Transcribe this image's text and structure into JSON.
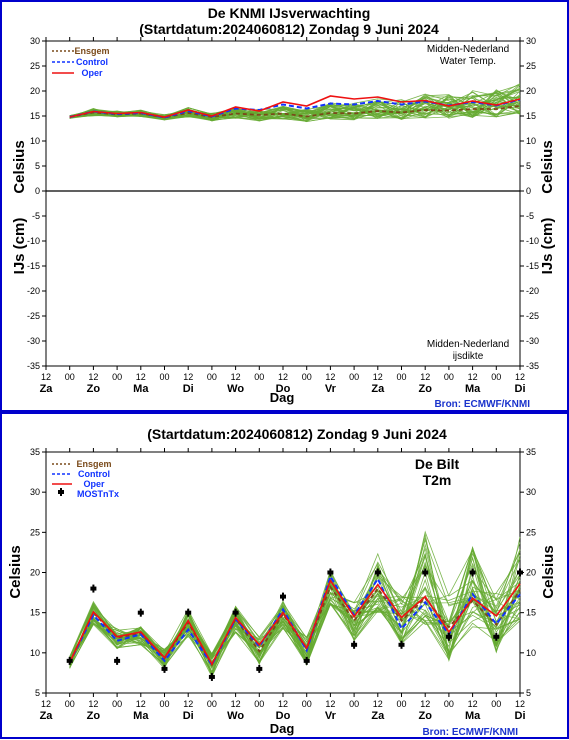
{
  "panel_top": {
    "title_line1": "De KNMI IJsverwachting",
    "title_line2": "(Startdatum:2024060812)  Zondag  9 Juni 2024",
    "ylabel_upper": "Celsius",
    "ylabel_lower": "IJs (cm)",
    "annotation_upper": [
      "Midden-Nederland",
      "Water Temp."
    ],
    "annotation_lower": [
      "Midden-Nederland",
      "ijsdikte"
    ],
    "xlabel": "Dag",
    "source": "Bron: ECMWF/KNMI",
    "legend": [
      "Ensgem",
      "Control",
      "Oper"
    ]
  },
  "panel_bottom": {
    "title": "(Startdatum:2024060812)  Zondag  9 Juni 2024",
    "location": [
      "De Bilt",
      "T2m"
    ],
    "ylabel": "Celsius",
    "xlabel": "Dag",
    "source": "Bron: ECMWF/KNMI",
    "legend": [
      "Ensgem",
      "Control",
      "Oper",
      "MOSTnTx"
    ]
  },
  "colors": {
    "frame": "#0000cc",
    "ensemble": "#66aa33",
    "ensgem": "#7a4a1a",
    "control": "#1133ff",
    "oper": "#ee1111",
    "mos": "#000000",
    "source": "#1a33cc"
  },
  "chart_data": [
    {
      "type": "line",
      "title": "De KNMI IJsverwachting (Startdatum:2024060812) Zondag 9 Juni 2024",
      "ylabel": "Celsius / IJs (cm)",
      "xlabel": "Dag",
      "ylim": [
        -35,
        30
      ],
      "ytick_labels": [
        "30",
        "25",
        "20",
        "15",
        "10",
        "5",
        "0",
        "-5",
        "-10",
        "-15",
        "-20",
        "-25",
        "-30",
        "-35"
      ],
      "xtick_hours": [
        "12",
        "00",
        "12",
        "00",
        "12",
        "00",
        "12",
        "00",
        "12",
        "00",
        "12",
        "00",
        "12",
        "00",
        "12",
        "00",
        "12",
        "00",
        "12",
        "00",
        "12"
      ],
      "xtick_days": [
        "Za",
        "Zo",
        "Ma",
        "Di",
        "Wo",
        "Do",
        "Vr",
        "Za",
        "Zo",
        "Ma",
        "Di"
      ],
      "x_steps": [
        1,
        2,
        3,
        4,
        5,
        6,
        7,
        8,
        9,
        10,
        11,
        12,
        13,
        14,
        15,
        16,
        17,
        18,
        19,
        20
      ],
      "series": [
        {
          "name": "Ensgem",
          "values": [
            14.8,
            15.7,
            15.3,
            15.5,
            14.7,
            15.6,
            14.8,
            15.5,
            15.2,
            15.5,
            14.9,
            15.6,
            15.5,
            16.0,
            15.7,
            16.2,
            16.1,
            16.4,
            16.4,
            17.0
          ]
        },
        {
          "name": "Control",
          "values": [
            14.8,
            15.9,
            15.4,
            15.6,
            14.7,
            16.0,
            14.9,
            16.5,
            16.2,
            17.3,
            16.5,
            17.5,
            17.3,
            18.0,
            17.3,
            17.9,
            17.1,
            17.8,
            17.1,
            18.3
          ]
        },
        {
          "name": "Oper",
          "values": [
            14.8,
            15.9,
            15.5,
            15.7,
            14.8,
            16.2,
            15.0,
            16.8,
            16.0,
            17.8,
            17.0,
            19.0,
            18.4,
            18.8,
            17.8,
            18.1,
            17.0,
            18.0,
            17.2,
            18.4
          ]
        }
      ],
      "ensemble_spread": {
        "low": [
          14.5,
          15.0,
          14.8,
          14.9,
          14.2,
          14.8,
          14.0,
          14.4,
          14.0,
          14.3,
          13.8,
          14.3,
          14.2,
          14.5,
          14.3,
          14.6,
          14.5,
          14.7,
          14.8,
          15.3
        ],
        "high": [
          15.1,
          16.6,
          16.1,
          16.2,
          15.3,
          16.7,
          15.6,
          16.7,
          16.5,
          17.2,
          16.6,
          17.7,
          17.6,
          18.6,
          18.3,
          19.4,
          19.4,
          20.2,
          20.3,
          21.5
        ]
      },
      "ice_thickness": 0
    },
    {
      "type": "line",
      "title": "(Startdatum:2024060812) Zondag 9 Juni 2024",
      "ylabel": "Celsius",
      "xlabel": "Dag",
      "ylim": [
        5,
        35
      ],
      "ytick_labels": [
        "35",
        "30",
        "25",
        "20",
        "15",
        "10",
        "5"
      ],
      "xtick_hours": [
        "12",
        "00",
        "12",
        "00",
        "12",
        "00",
        "12",
        "00",
        "12",
        "00",
        "12",
        "00",
        "12",
        "00",
        "12",
        "00",
        "12",
        "00",
        "12",
        "00",
        "12"
      ],
      "xtick_days": [
        "Za",
        "Zo",
        "Ma",
        "Di",
        "Wo",
        "Do",
        "Vr",
        "Za",
        "Zo",
        "Ma",
        "Di"
      ],
      "x_steps": [
        1,
        2,
        3,
        4,
        5,
        6,
        7,
        8,
        9,
        10,
        11,
        12,
        13,
        14,
        15,
        16,
        17,
        18,
        19,
        20
      ],
      "series": [
        {
          "name": "Ensgem",
          "values": [
            8.8,
            15.0,
            11.9,
            12.4,
            9.3,
            13.8,
            8.5,
            14.2,
            10.2,
            14.8,
            10.5,
            18.2,
            14.0,
            18.0,
            14.0,
            16.8,
            13.2,
            16.5,
            13.5,
            17.8
          ]
        },
        {
          "name": "Control",
          "values": [
            8.8,
            14.7,
            11.5,
            12.3,
            9.0,
            12.9,
            8.5,
            14.2,
            10.8,
            15.4,
            10.3,
            19.5,
            14.7,
            19.2,
            13.0,
            16.3,
            12.3,
            17.3,
            13.6,
            17.3
          ]
        },
        {
          "name": "Oper",
          "values": [
            8.8,
            15.1,
            12.0,
            12.6,
            9.4,
            14.0,
            8.6,
            14.4,
            11.0,
            15.0,
            10.6,
            19.0,
            14.5,
            18.5,
            14.4,
            17.0,
            12.6,
            16.8,
            14.6,
            18.6
          ]
        },
        {
          "name": "MOSTnTx",
          "values": [
            9,
            18,
            9,
            15,
            8,
            15,
            7,
            15,
            8,
            17,
            9,
            20,
            11,
            20,
            11,
            20,
            12,
            20,
            12,
            20
          ]
        }
      ],
      "ensemble_spread": {
        "low": [
          8.0,
          13.5,
          10.5,
          11.0,
          8.0,
          12.0,
          7.0,
          12.5,
          8.5,
          13.0,
          8.5,
          16.0,
          11.5,
          15.0,
          11.0,
          13.5,
          9.0,
          13.0,
          10.0,
          14.0
        ],
        "high": [
          9.6,
          16.5,
          13.0,
          13.5,
          10.5,
          15.5,
          10.0,
          15.8,
          12.0,
          16.8,
          12.0,
          20.5,
          16.5,
          23.0,
          17.5,
          25.5,
          17.5,
          23.5,
          17.5,
          24.5
        ]
      }
    }
  ]
}
